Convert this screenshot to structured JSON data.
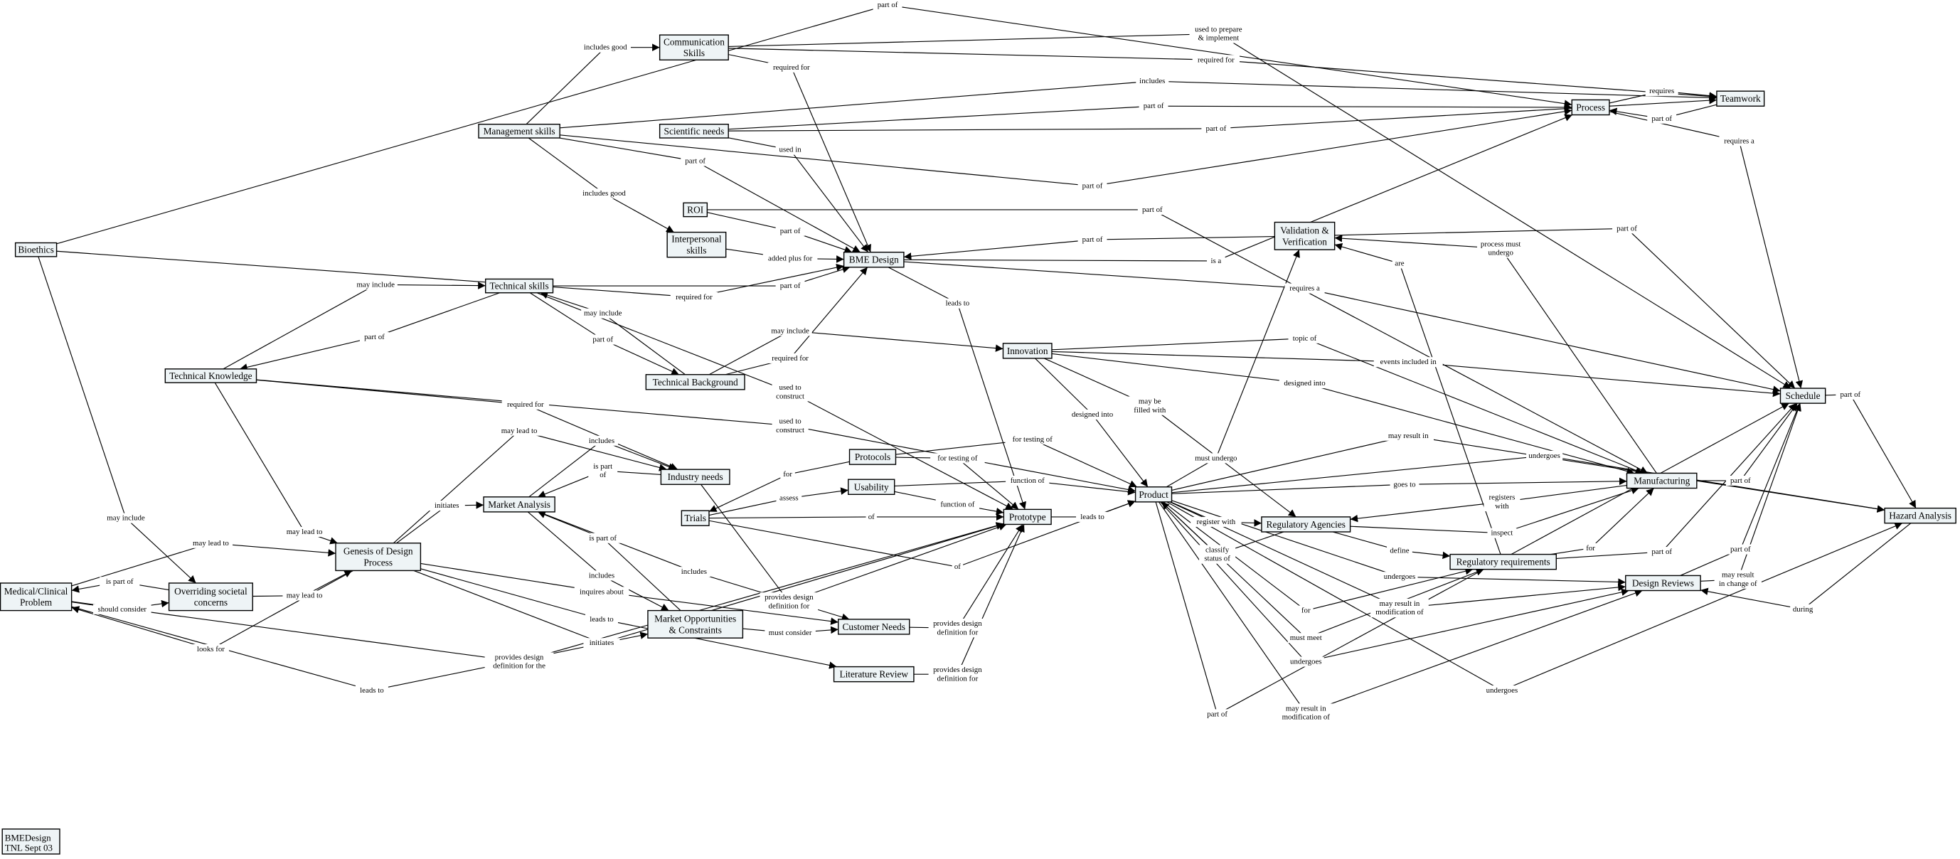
{
  "legend": {
    "line1": "BMEDesign",
    "line2": "TNL Sept 03"
  },
  "colors": {
    "node_fill": "#eef4f6",
    "line": "#000000",
    "background": "#ffffff"
  },
  "nodes": [
    "Bioethics",
    "Management skills",
    "Communication Skills",
    "Scientific needs",
    "ROI",
    "Interpersonal skills",
    "BME Design",
    "Technical skills",
    "Technical Knowledge",
    "Technical Background",
    "Industry needs",
    "Protocols",
    "Usability",
    "Trials",
    "Market Analysis",
    "Genesis of Design Process",
    "Medical/Clinical Problem",
    "Overriding societal concerns",
    "Market Opportunities & Constraints",
    "Customer Needs",
    "Literature Review",
    "Innovation",
    "Prototype",
    "Product",
    "Validation & Verification",
    "Regulatory Agencies",
    "Regulatory requirements",
    "Manufacturing",
    "Design Reviews",
    "Process",
    "Teamwork",
    "Schedule",
    "Hazard Analysis"
  ],
  "edges": [
    {
      "from": "Bioethics",
      "label": "part of",
      "to": "Process"
    },
    {
      "from": "Management skills",
      "label": "includes good",
      "to": "Communication Skills"
    },
    {
      "from": "Communication Skills",
      "label": "used to prepare & implement",
      "to": "Schedule"
    },
    {
      "from": "Communication Skills",
      "label": "required for",
      "to": "Teamwork"
    },
    {
      "from": "Communication Skills",
      "label": "required for",
      "to": "BME Design"
    },
    {
      "from": "Management skills",
      "label": "includes",
      "to": "Teamwork"
    },
    {
      "from": "Scientific needs",
      "label": "part of",
      "to": "Process"
    },
    {
      "from": "Scientific needs",
      "label": "part of",
      "to": "Teamwork"
    },
    {
      "from": "Scientific needs",
      "label": "used in",
      "to": "BME Design"
    },
    {
      "from": "Management skills",
      "label": "part of",
      "to": "BME Design"
    },
    {
      "from": "Management skills",
      "label": "part of",
      "to": "Process"
    },
    {
      "from": "Management skills",
      "label": "includes good",
      "to": "Interpersonal skills"
    },
    {
      "from": "ROI",
      "label": "part of",
      "to": "BME Design"
    },
    {
      "from": "ROI",
      "label": "part of",
      "to": "Manufacturing"
    },
    {
      "from": "Interpersonal skills",
      "label": "added plus for",
      "to": "BME Design"
    },
    {
      "from": "Validation & Verification",
      "label": "part of",
      "to": "BME Design"
    },
    {
      "from": "BME Design",
      "label": "is a",
      "to": "Process"
    },
    {
      "from": "BME Design",
      "label": "requires a",
      "to": "Schedule"
    },
    {
      "from": "BME Design",
      "label": "leads to",
      "to": "Prototype"
    },
    {
      "from": "Bioethics",
      "label": "required for",
      "to": "BME Design"
    },
    {
      "from": "Technical Knowledge",
      "label": "may include",
      "to": "Technical skills"
    },
    {
      "from": "Technical skills",
      "label": "part of",
      "to": "Technical Knowledge"
    },
    {
      "from": "Technical skills",
      "label": "part of",
      "to": "BME Design"
    },
    {
      "from": "Technical Background",
      "label": "may include",
      "to": "Technical skills"
    },
    {
      "from": "Technical skills",
      "label": "part of",
      "to": "Technical Background"
    },
    {
      "from": "Technical Background",
      "label": "may include",
      "to": "Innovation"
    },
    {
      "from": "Technical Background",
      "label": "required for",
      "to": "BME Design"
    },
    {
      "from": "Technical skills",
      "label": "used to construct",
      "to": "Prototype"
    },
    {
      "from": "Technical Knowledge",
      "label": "used to construct",
      "to": "Product"
    },
    {
      "from": "Technical Knowledge",
      "label": "required for",
      "to": "Industry needs"
    },
    {
      "from": "Genesis of Design Process",
      "label": "may lead to",
      "to": "Industry needs"
    },
    {
      "from": "Market Analysis",
      "label": "includes",
      "to": "Industry needs"
    },
    {
      "from": "Industry needs",
      "label": "is part of",
      "to": "Market Analysis"
    },
    {
      "from": "Genesis of Design Process",
      "label": "initiates",
      "to": "Market Analysis"
    },
    {
      "from": "Protocols",
      "label": "for",
      "to": "Trials"
    },
    {
      "from": "Trials",
      "label": "assess",
      "to": "Usability"
    },
    {
      "from": "Protocols",
      "label": "for testing of",
      "to": "Prototype"
    },
    {
      "from": "Protocols",
      "label": "for testing of",
      "to": "Product"
    },
    {
      "from": "Usability",
      "label": "function of",
      "to": "Prototype"
    },
    {
      "from": "Usability",
      "label": "function of",
      "to": "Product"
    },
    {
      "from": "Trials",
      "label": "of",
      "to": "Prototype"
    },
    {
      "from": "Trials",
      "label": "of",
      "to": "Product"
    },
    {
      "from": "Market Opportunities & Constraints",
      "label": "is part of",
      "to": "Market Analysis"
    },
    {
      "from": "Market Analysis",
      "label": "includes",
      "to": "Market Opportunities & Constraints"
    },
    {
      "from": "Market Analysis",
      "label": "includes",
      "to": "Customer Needs"
    },
    {
      "from": "Genesis of Design Process",
      "label": "inquires about",
      "to": "Customer Needs"
    },
    {
      "from": "Industry needs",
      "label": "provides design definition for",
      "to": "Prototype"
    },
    {
      "from": "Genesis of Design Process",
      "label": "leads to",
      "to": "Literature Review"
    },
    {
      "from": "Genesis of Design Process",
      "label": "initiates",
      "to": "Prototype"
    },
    {
      "from": "Market Opportunities & Constraints",
      "label": "must consider",
      "to": "Customer Needs"
    },
    {
      "from": "Customer Needs",
      "label": "provides design definition for",
      "to": "Prototype"
    },
    {
      "from": "Literature Review",
      "label": "provides design definition for",
      "to": "Prototype"
    },
    {
      "from": "Bioethics",
      "label": "may include",
      "to": "Overriding societal concerns"
    },
    {
      "from": "Technical Knowledge",
      "label": "may lead to",
      "to": "Genesis of Design Process"
    },
    {
      "from": "Medical/Clinical Problem",
      "label": "may lead to",
      "to": "Genesis of Design Process"
    },
    {
      "from": "Overriding societal concerns",
      "label": "is part of",
      "to": "Medical/Clinical Problem"
    },
    {
      "from": "Medical/Clinical Problem",
      "label": "should consider",
      "to": "Overriding societal concerns"
    },
    {
      "from": "Overriding societal concerns",
      "label": "may lead to",
      "to": "Genesis of Design Process"
    },
    {
      "from": "Genesis of Design Process",
      "label": "looks for",
      "to": "Medical/Clinical Problem"
    },
    {
      "from": "Medical/Clinical Problem",
      "label": "provides design definition for the",
      "to": "Prototype"
    },
    {
      "from": "Medical/Clinical Problem",
      "label": "leads to",
      "to": "Market Opportunities & Constraints"
    },
    {
      "from": "Innovation",
      "label": "topic of",
      "to": "Manufacturing"
    },
    {
      "from": "Innovation",
      "label": "events included in",
      "to": "Schedule"
    },
    {
      "from": "Innovation",
      "label": "designed into",
      "to": "Manufacturing"
    },
    {
      "from": "Innovation",
      "label": "may be filled with",
      "to": "Regulatory Agencies"
    },
    {
      "from": "Innovation",
      "label": "designed into",
      "to": "Product"
    },
    {
      "from": "Product",
      "label": "may result in",
      "to": "Hazard Analysis"
    },
    {
      "from": "Product",
      "label": "must undergo",
      "to": "Validation & Verification"
    },
    {
      "from": "Product",
      "label": "undergoes",
      "to": "Hazard Analysis"
    },
    {
      "from": "Product",
      "label": "goes to",
      "to": "Manufacturing"
    },
    {
      "from": "Manufacturing",
      "label": "registers with",
      "to": "Regulatory Agencies"
    },
    {
      "from": "Regulatory Agencies",
      "label": "inspect",
      "to": "Manufacturing"
    },
    {
      "from": "Product",
      "label": "register with",
      "to": "Regulatory Agencies"
    },
    {
      "from": "Regulatory Agencies",
      "label": "classify status of",
      "to": "Product"
    },
    {
      "from": "Regulatory Agencies",
      "label": "define",
      "to": "Regulatory requirements"
    },
    {
      "from": "Regulatory requirements",
      "label": "for",
      "to": "Manufacturing"
    },
    {
      "from": "Regulatory requirements",
      "label": "part of",
      "to": "Schedule"
    },
    {
      "from": "Prototype",
      "label": "leads to",
      "to": "Product"
    },
    {
      "from": "Product",
      "label": "undergoes",
      "to": "Design Reviews"
    },
    {
      "from": "Product",
      "label": "may result in modification of",
      "to": "Design Reviews"
    },
    {
      "from": "Product",
      "label": "for",
      "to": "Regulatory requirements"
    },
    {
      "from": "Product",
      "label": "must meet",
      "to": "Regulatory requirements"
    },
    {
      "from": "Product",
      "label": "undergoes",
      "to": "Design Reviews"
    },
    {
      "from": "Product",
      "label": "undergoes",
      "to": "Hazard Analysis"
    },
    {
      "from": "Product",
      "label": "may result in modification of",
      "to": "Design Reviews"
    },
    {
      "from": "Product",
      "label": "part of",
      "to": "Schedule"
    },
    {
      "from": "Manufacturing",
      "label": "part of",
      "to": "Schedule"
    },
    {
      "from": "Design Reviews",
      "label": "part of",
      "to": "Schedule"
    },
    {
      "from": "Design Reviews",
      "label": "may result in change of",
      "to": "Schedule"
    },
    {
      "from": "Hazard Analysis",
      "label": "during",
      "to": "Design Reviews"
    },
    {
      "from": "Schedule",
      "label": "part of",
      "to": "Hazard Analysis"
    },
    {
      "from": "Process",
      "label": "requires",
      "to": "Teamwork"
    },
    {
      "from": "Teamwork",
      "label": "part of",
      "to": "Process"
    },
    {
      "from": "Process",
      "label": "requires a",
      "to": "Schedule"
    },
    {
      "from": "Validation & Verification",
      "label": "part of",
      "to": "Schedule"
    },
    {
      "from": "Manufacturing",
      "label": "process must undergo",
      "to": "Validation & Verification"
    },
    {
      "from": "Regulatory requirements",
      "label": "are",
      "to": "Validation & Verification"
    }
  ]
}
